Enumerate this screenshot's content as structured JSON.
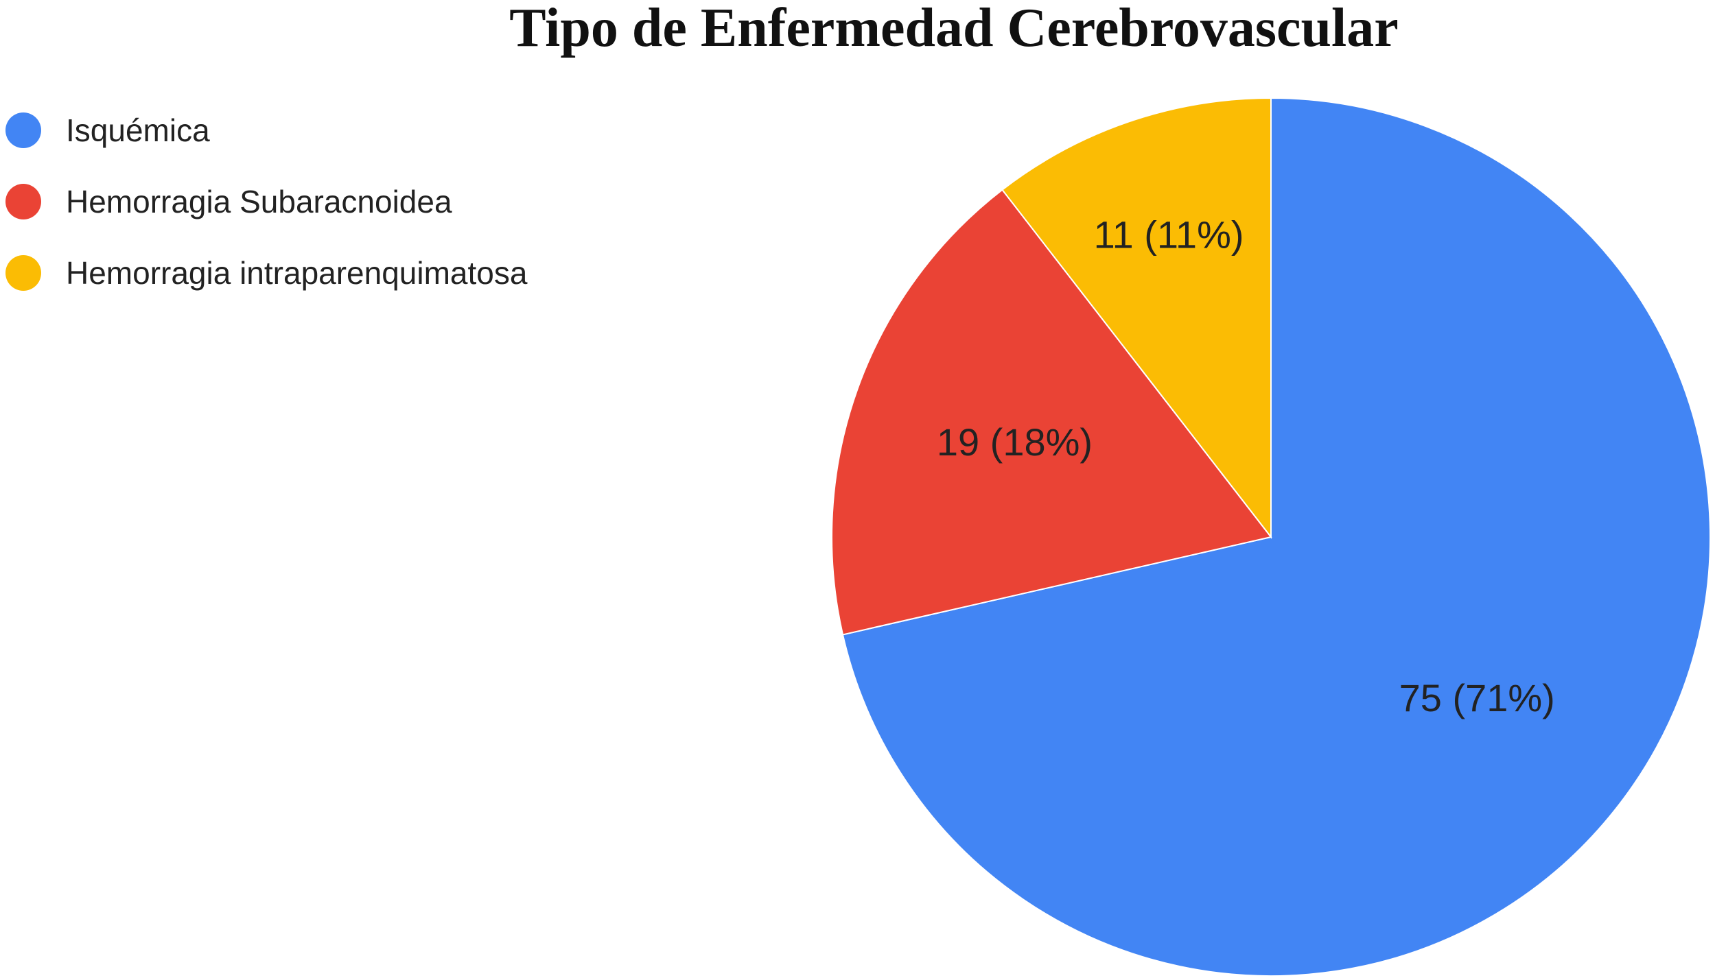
{
  "chart_data": {
    "type": "pie",
    "title": "Tipo de Enfermedad Cerebrovascular",
    "categories": [
      "Isquémica",
      "Hemorragia Subaracnoidea",
      "Hemorragia intraparenquimatosa"
    ],
    "values": [
      75,
      19,
      11
    ],
    "data_labels": [
      "75 (71%)",
      "19 (18%)",
      "11 (11%)"
    ],
    "colors": [
      "#4285F4",
      "#EA4335",
      "#FBBC04"
    ],
    "legend_position": "left",
    "start_angle": "top",
    "direction": "clockwise"
  }
}
